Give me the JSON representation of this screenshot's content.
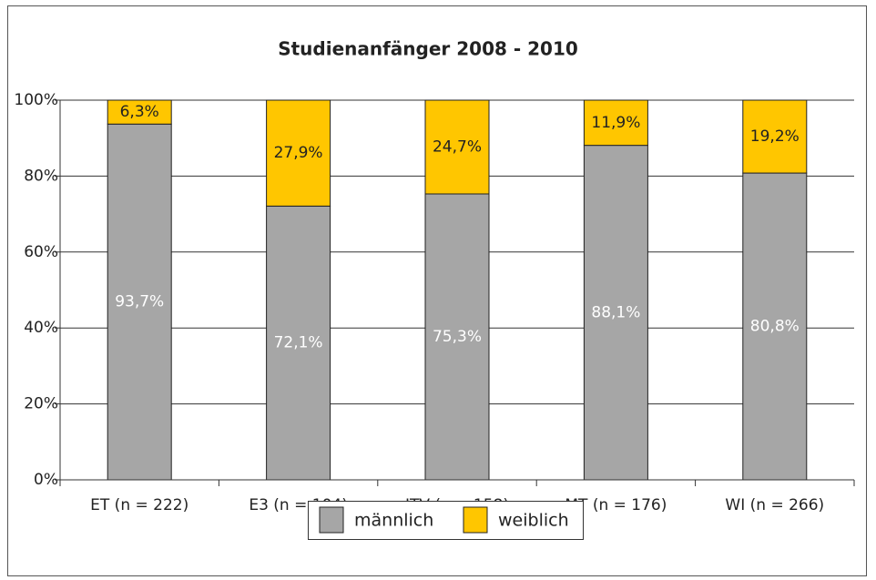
{
  "chart_data": {
    "type": "stacked_bar",
    "title": "Studienanfänger 2008 - 2010",
    "categories": [
      "ET (n = 222)",
      "E3 (n = 104)",
      "ITV (n = 158)",
      "MT (n = 176)",
      "WI (n = 266)"
    ],
    "series": [
      {
        "name": "männlich",
        "color": "#a6a6a6",
        "values": [
          93.7,
          72.1,
          75.3,
          88.1,
          80.8
        ],
        "value_labels": [
          "93,7%",
          "72,1%",
          "75,3%",
          "88,1%",
          "80,8%"
        ]
      },
      {
        "name": "weiblich",
        "color": "#ffc600",
        "values": [
          6.3,
          27.9,
          24.7,
          11.9,
          19.2
        ],
        "value_labels": [
          "6,3%",
          "27,9%",
          "24,7%",
          "11,9%",
          "19,2%"
        ]
      }
    ],
    "ylim": [
      0,
      100
    ],
    "yticks": [
      {
        "value": 0,
        "label": "0%"
      },
      {
        "value": 20,
        "label": "20%"
      },
      {
        "value": 40,
        "label": "40%"
      },
      {
        "value": 60,
        "label": "60%"
      },
      {
        "value": 80,
        "label": "80%"
      },
      {
        "value": 100,
        "label": "100%"
      }
    ],
    "grid": true,
    "legend": "bottom"
  }
}
